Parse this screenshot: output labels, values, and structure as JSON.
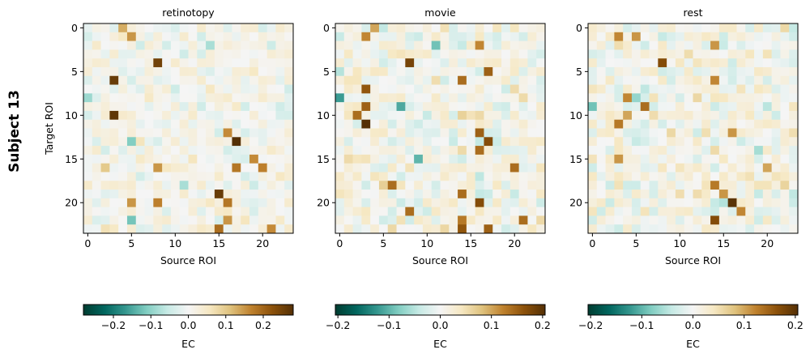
{
  "figure": {
    "row_label": "Subject 13"
  },
  "chart_data": [
    {
      "type": "heatmap",
      "title": "retinotopy",
      "xlabel": "Source ROI",
      "ylabel": "Target ROI",
      "n": 24,
      "xticks": [
        "0",
        "5",
        "10",
        "15",
        "20"
      ],
      "yticks": [
        "0",
        "5",
        "10",
        "15",
        "20"
      ],
      "colorbar": {
        "label": "EC",
        "vmin": -0.28,
        "vmax": 0.28,
        "ticks": [
          -0.2,
          -0.1,
          0.0,
          0.1,
          0.2
        ],
        "tick_labels": [
          "−0.2",
          "−0.1",
          "0.0",
          "0.1",
          "0.2"
        ]
      },
      "strong_cells": [
        {
          "row": 0,
          "col": 4,
          "value": 0.13
        },
        {
          "row": 1,
          "col": 5,
          "value": 0.15
        },
        {
          "row": 4,
          "col": 8,
          "value": 0.25
        },
        {
          "row": 6,
          "col": 3,
          "value": 0.26
        },
        {
          "row": 10,
          "col": 3,
          "value": 0.27
        },
        {
          "row": 12,
          "col": 16,
          "value": 0.16
        },
        {
          "row": 13,
          "col": 17,
          "value": 0.28
        },
        {
          "row": 15,
          "col": 19,
          "value": 0.16
        },
        {
          "row": 16,
          "col": 8,
          "value": 0.15
        },
        {
          "row": 16,
          "col": 17,
          "value": 0.18
        },
        {
          "row": 16,
          "col": 20,
          "value": 0.17
        },
        {
          "row": 19,
          "col": 15,
          "value": 0.26
        },
        {
          "row": 20,
          "col": 5,
          "value": 0.15
        },
        {
          "row": 20,
          "col": 8,
          "value": 0.17
        },
        {
          "row": 20,
          "col": 16,
          "value": 0.18
        },
        {
          "row": 22,
          "col": 16,
          "value": 0.15
        },
        {
          "row": 23,
          "col": 15,
          "value": 0.19
        },
        {
          "row": 23,
          "col": 21,
          "value": 0.16
        },
        {
          "row": 8,
          "col": 0,
          "value": -0.09
        },
        {
          "row": 13,
          "col": 5,
          "value": -0.11
        },
        {
          "row": 22,
          "col": 5,
          "value": -0.12
        },
        {
          "row": 16,
          "col": 2,
          "value": 0.1
        },
        {
          "row": 2,
          "col": 14,
          "value": -0.08
        },
        {
          "row": 18,
          "col": 11,
          "value": -0.08
        }
      ]
    },
    {
      "type": "heatmap",
      "title": "movie",
      "xlabel": "Source ROI",
      "ylabel": "",
      "n": 24,
      "xticks": [
        "0",
        "5",
        "10",
        "15",
        "20"
      ],
      "yticks": [
        "0",
        "5",
        "10",
        "15",
        "20"
      ],
      "colorbar": {
        "label": "EC",
        "vmin": -0.205,
        "vmax": 0.205,
        "ticks": [
          -0.2,
          -0.1,
          0.0,
          0.1,
          0.2
        ],
        "tick_labels": [
          "−0.2",
          "−0.1",
          "0.0",
          "0.1",
          "0.2"
        ]
      },
      "strong_cells": [
        {
          "row": 1,
          "col": 3,
          "value": 0.12
        },
        {
          "row": 0,
          "col": 4,
          "value": 0.1
        },
        {
          "row": 2,
          "col": 16,
          "value": 0.12
        },
        {
          "row": 4,
          "col": 8,
          "value": 0.18
        },
        {
          "row": 5,
          "col": 17,
          "value": 0.15
        },
        {
          "row": 6,
          "col": 14,
          "value": 0.14
        },
        {
          "row": 7,
          "col": 3,
          "value": 0.16
        },
        {
          "row": 9,
          "col": 3,
          "value": 0.15
        },
        {
          "row": 10,
          "col": 2,
          "value": 0.14
        },
        {
          "row": 11,
          "col": 3,
          "value": 0.21
        },
        {
          "row": 12,
          "col": 16,
          "value": 0.15
        },
        {
          "row": 13,
          "col": 17,
          "value": 0.17
        },
        {
          "row": 14,
          "col": 16,
          "value": 0.14
        },
        {
          "row": 16,
          "col": 20,
          "value": 0.14
        },
        {
          "row": 18,
          "col": 6,
          "value": 0.14
        },
        {
          "row": 19,
          "col": 14,
          "value": 0.14
        },
        {
          "row": 20,
          "col": 16,
          "value": 0.17
        },
        {
          "row": 21,
          "col": 8,
          "value": 0.14
        },
        {
          "row": 22,
          "col": 21,
          "value": 0.14
        },
        {
          "row": 22,
          "col": 14,
          "value": 0.13
        },
        {
          "row": 23,
          "col": 14,
          "value": 0.16
        },
        {
          "row": 23,
          "col": 17,
          "value": 0.15
        },
        {
          "row": 9,
          "col": 7,
          "value": -0.11
        },
        {
          "row": 8,
          "col": 0,
          "value": -0.12
        },
        {
          "row": 15,
          "col": 9,
          "value": -0.1
        },
        {
          "row": 2,
          "col": 11,
          "value": -0.09
        }
      ]
    },
    {
      "type": "heatmap",
      "title": "rest",
      "xlabel": "Source ROI",
      "ylabel": "",
      "n": 24,
      "xticks": [
        "0",
        "5",
        "10",
        "15",
        "20"
      ],
      "yticks": [
        "0",
        "5",
        "10",
        "15",
        "20"
      ],
      "colorbar": {
        "label": "EC",
        "vmin": -0.205,
        "vmax": 0.205,
        "ticks": [
          -0.2,
          -0.1,
          0.0,
          0.1,
          0.2
        ],
        "tick_labels": [
          "−0.2",
          "−0.1",
          "0.0",
          "0.1",
          "0.2"
        ]
      },
      "strong_cells": [
        {
          "row": 1,
          "col": 3,
          "value": 0.12
        },
        {
          "row": 1,
          "col": 5,
          "value": 0.11
        },
        {
          "row": 2,
          "col": 14,
          "value": 0.11
        },
        {
          "row": 4,
          "col": 8,
          "value": 0.17
        },
        {
          "row": 6,
          "col": 14,
          "value": 0.12
        },
        {
          "row": 8,
          "col": 4,
          "value": 0.12
        },
        {
          "row": 9,
          "col": 6,
          "value": 0.14
        },
        {
          "row": 10,
          "col": 4,
          "value": 0.1
        },
        {
          "row": 11,
          "col": 3,
          "value": 0.13
        },
        {
          "row": 12,
          "col": 16,
          "value": 0.11
        },
        {
          "row": 15,
          "col": 3,
          "value": 0.11
        },
        {
          "row": 16,
          "col": 20,
          "value": 0.1
        },
        {
          "row": 18,
          "col": 14,
          "value": 0.13
        },
        {
          "row": 19,
          "col": 15,
          "value": 0.11
        },
        {
          "row": 20,
          "col": 16,
          "value": 0.2
        },
        {
          "row": 22,
          "col": 14,
          "value": 0.17
        },
        {
          "row": 21,
          "col": 17,
          "value": 0.12
        },
        {
          "row": 9,
          "col": 0,
          "value": -0.09
        },
        {
          "row": 8,
          "col": 5,
          "value": -0.07
        },
        {
          "row": 14,
          "col": 19,
          "value": -0.06
        }
      ]
    }
  ]
}
